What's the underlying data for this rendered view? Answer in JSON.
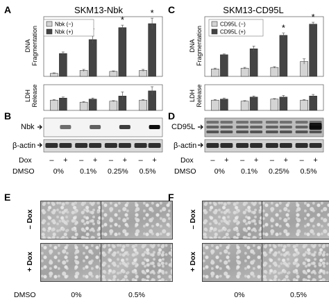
{
  "panels": {
    "A": "A",
    "B": "B",
    "C": "C",
    "D": "D",
    "E": "E",
    "F": "F"
  },
  "left": {
    "title": "SKM13-Nbk",
    "legend": [
      "Nbk (−)",
      "Nbk (+)"
    ],
    "protein": "Nbk",
    "loading": "β-actin"
  },
  "right": {
    "title": "SKM13-CD95L",
    "legend": [
      "CD95L (−)",
      "CD95L (+)"
    ],
    "protein": "CD95L",
    "loading": "β-actin"
  },
  "labels": {
    "dna_ylabel_1": "DNA",
    "dna_ylabel_2": "Fragmentation",
    "ldh_ylabel_1": "LDH",
    "ldh_ylabel_2": "Release",
    "dox": "Dox",
    "dmso": "DMSO",
    "minus": "–",
    "plus": "+",
    "star": "*",
    "dmso_levels": [
      "0%",
      "0.1%",
      "0.25%",
      "0.5%"
    ],
    "micro_dmso": [
      "0%",
      "0.5%"
    ],
    "minus_dox": "– Dox",
    "plus_dox": "+ Dox"
  },
  "colors": {
    "minus_bar": "#d4d4d4",
    "plus_bar": "#444444"
  },
  "chart_data": [
    {
      "type": "bar",
      "panel": "A-top",
      "categories": [
        "0%",
        "0.1%",
        "0.25%",
        "0.5%"
      ],
      "series": [
        {
          "name": "Nbk (−)",
          "values": [
            0.3,
            0.6,
            0.5,
            0.6
          ],
          "errors": [
            0.05,
            0.1,
            0.05,
            0.1
          ]
        },
        {
          "name": "Nbk (+)",
          "values": [
            2.3,
            3.7,
            4.9,
            5.3
          ],
          "errors": [
            0.15,
            0.35,
            0.25,
            0.55
          ]
        }
      ],
      "significant": [
        false,
        true,
        true,
        true
      ],
      "ylim": [
        0,
        6
      ]
    },
    {
      "type": "bar",
      "panel": "A-bottom",
      "categories": [
        "0%",
        "0.1%",
        "0.25%",
        "0.5%"
      ],
      "series": [
        {
          "name": "Nbk (−)",
          "values": [
            1.0,
            0.8,
            0.9,
            1.0
          ],
          "errors": [
            0.05,
            0.05,
            0.05,
            0.05
          ]
        },
        {
          "name": "Nbk (+)",
          "values": [
            1.2,
            1.1,
            1.4,
            1.9
          ],
          "errors": [
            0.1,
            0.1,
            0.4,
            0.4
          ]
        }
      ],
      "ylim": [
        0,
        2.5
      ]
    },
    {
      "type": "bar",
      "panel": "C-top",
      "categories": [
        "0%",
        "0.1%",
        "0.25%",
        "0.5%"
      ],
      "series": [
        {
          "name": "CD95L (−)",
          "values": [
            1.0,
            1.1,
            1.2,
            2.0
          ],
          "errors": [
            0.1,
            0.1,
            0.1,
            0.35
          ]
        },
        {
          "name": "CD95L (+)",
          "values": [
            2.9,
            3.7,
            5.5,
            7.0
          ],
          "errors": [
            0.1,
            0.35,
            0.3,
            0.25
          ]
        }
      ],
      "significant": [
        false,
        false,
        true,
        true
      ],
      "ylim": [
        0,
        8
      ]
    },
    {
      "type": "bar",
      "panel": "C-bottom",
      "categories": [
        "0%",
        "0.1%",
        "0.25%",
        "0.5%"
      ],
      "series": [
        {
          "name": "CD95L (−)",
          "values": [
            1.0,
            0.9,
            1.1,
            1.0
          ],
          "errors": [
            0.05,
            0.05,
            0.05,
            0.05
          ]
        },
        {
          "name": "CD95L (+)",
          "values": [
            1.1,
            1.3,
            1.3,
            1.4
          ],
          "errors": [
            0.1,
            0.1,
            0.15,
            0.15
          ]
        }
      ],
      "ylim": [
        0,
        2.5
      ]
    }
  ]
}
